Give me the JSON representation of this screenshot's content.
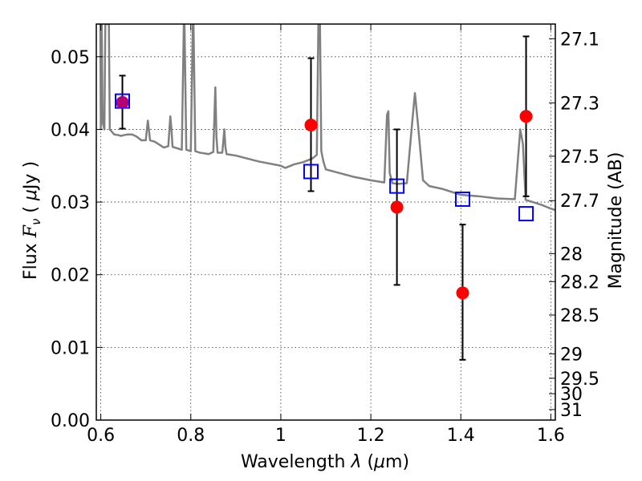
{
  "chart_data": {
    "type": "scatter",
    "xlabel": "Wavelength  λ (μm)",
    "ylabel": "Flux  F_ν  ( μJy )",
    "ylabel_parts": {
      "pre": "Flux ",
      "sym": "F",
      "sub": "ν",
      "mid": "  ( ",
      "mu": "μ",
      "unit": "Jy )"
    },
    "xlabel_parts": {
      "pre": "Wavelength  ",
      "lam": "λ",
      "mid": " (",
      "mu": "μ",
      "unit": "m)"
    },
    "y2label": "Magnitude (AB)",
    "xlim": [
      0.59,
      1.61
    ],
    "ylim": [
      0.0,
      0.0545
    ],
    "grid": true,
    "x_ticks": [
      {
        "value": 0.6,
        "label": "0.6"
      },
      {
        "value": 0.8,
        "label": "0.8"
      },
      {
        "value": 1.0,
        "label": "1"
      },
      {
        "value": 1.2,
        "label": "1.2"
      },
      {
        "value": 1.4,
        "label": "1.4"
      },
      {
        "value": 1.6,
        "label": "1.6"
      }
    ],
    "y_ticks": [
      {
        "value": 0.0,
        "label": "0.00"
      },
      {
        "value": 0.01,
        "label": "0.01"
      },
      {
        "value": 0.02,
        "label": "0.02"
      },
      {
        "value": 0.03,
        "label": "0.03"
      },
      {
        "value": 0.04,
        "label": "0.04"
      },
      {
        "value": 0.05,
        "label": "0.05"
      }
    ],
    "mag_ticks": [
      {
        "value": 27.1,
        "label": "27.1"
      },
      {
        "value": 27.3,
        "label": "27.3"
      },
      {
        "value": 27.5,
        "label": "27.5"
      },
      {
        "value": 27.7,
        "label": "27.7"
      },
      {
        "value": 28.0,
        "label": "28"
      },
      {
        "value": 28.2,
        "label": "28.2"
      },
      {
        "value": 28.5,
        "label": "28.5"
      },
      {
        "value": 29.0,
        "label": "29"
      },
      {
        "value": 29.5,
        "label": "29.5"
      },
      {
        "value": 30.0,
        "label": "30"
      },
      {
        "value": 31.0,
        "label": "31"
      }
    ],
    "series": [
      {
        "name": "model SED",
        "kind": "line",
        "color": "#808080",
        "x": [
          0.595,
          0.597,
          0.598,
          0.599,
          0.6,
          0.601,
          0.602,
          0.604,
          0.608,
          0.61,
          0.612,
          0.614,
          0.616,
          0.618,
          0.62,
          0.63,
          0.64,
          0.645,
          0.65,
          0.66,
          0.67,
          0.68,
          0.69,
          0.7,
          0.7045,
          0.707,
          0.7095,
          0.72,
          0.74,
          0.75,
          0.7545,
          0.757,
          0.7595,
          0.77,
          0.78,
          0.7845,
          0.786,
          0.79,
          0.8,
          0.8045,
          0.806,
          0.81,
          0.82,
          0.84,
          0.85,
          0.8545,
          0.857,
          0.8595,
          0.87,
          0.8745,
          0.877,
          0.8795,
          0.9,
          0.95,
          1.0,
          1.01,
          1.03,
          1.05,
          1.07,
          1.08,
          1.0835,
          1.085,
          1.087,
          1.09,
          1.095,
          1.1,
          1.13,
          1.16,
          1.2,
          1.23,
          1.236,
          1.239,
          1.242,
          1.248,
          1.26,
          1.28,
          1.292,
          1.298,
          1.304,
          1.316,
          1.33,
          1.36,
          1.4,
          1.44,
          1.48,
          1.52,
          1.532,
          1.538,
          1.544,
          1.56,
          1.58,
          1.6,
          1.61
        ],
        "y": [
          0.0545,
          0.0545,
          0.0545,
          0.0545,
          0.04,
          0.045,
          0.0545,
          0.041,
          0.04,
          0.0545,
          0.0545,
          0.0545,
          0.0545,
          0.0545,
          0.04,
          0.0393,
          0.0392,
          0.0391,
          0.0392,
          0.0393,
          0.0393,
          0.039,
          0.0385,
          0.0385,
          0.0412,
          0.0399,
          0.0385,
          0.0383,
          0.0375,
          0.0377,
          0.0418,
          0.04,
          0.0376,
          0.0374,
          0.0372,
          0.0545,
          0.0545,
          0.0372,
          0.037,
          0.0545,
          0.0545,
          0.037,
          0.0368,
          0.0366,
          0.0369,
          0.0458,
          0.039,
          0.0368,
          0.0368,
          0.04,
          0.0375,
          0.0366,
          0.0364,
          0.0356,
          0.035,
          0.0347,
          0.0352,
          0.0355,
          0.036,
          0.0365,
          0.0545,
          0.0545,
          0.0545,
          0.037,
          0.0355,
          0.0345,
          0.034,
          0.0335,
          0.033,
          0.0327,
          0.042,
          0.0425,
          0.034,
          0.0326,
          0.0325,
          0.0326,
          0.041,
          0.045,
          0.0412,
          0.033,
          0.0322,
          0.0318,
          0.031,
          0.0308,
          0.0305,
          0.0304,
          0.04,
          0.038,
          0.0303,
          0.03,
          0.0296,
          0.0291,
          0.0289
        ]
      },
      {
        "name": "observed",
        "kind": "errorbar",
        "color": "#ff0000",
        "points": [
          {
            "x": 0.648,
            "y": 0.0437,
            "yerr_low": 0.0401,
            "yerr_high": 0.0474
          },
          {
            "x": 1.067,
            "y": 0.0406,
            "yerr_low": 0.0315,
            "yerr_high": 0.0498
          },
          {
            "x": 1.258,
            "y": 0.0293,
            "yerr_low": 0.0186,
            "yerr_high": 0.04
          },
          {
            "x": 1.404,
            "y": 0.0175,
            "yerr_low": 0.0083,
            "yerr_high": 0.0269
          },
          {
            "x": 1.545,
            "y": 0.0418,
            "yerr_low": 0.0308,
            "yerr_high": 0.0528
          }
        ]
      },
      {
        "name": "model photometry",
        "kind": "square",
        "color": "#0000ff",
        "points": [
          {
            "x": 0.648,
            "y": 0.0439
          },
          {
            "x": 1.067,
            "y": 0.0342
          },
          {
            "x": 1.258,
            "y": 0.0322
          },
          {
            "x": 1.404,
            "y": 0.0304
          },
          {
            "x": 1.545,
            "y": 0.0284
          }
        ]
      }
    ]
  }
}
